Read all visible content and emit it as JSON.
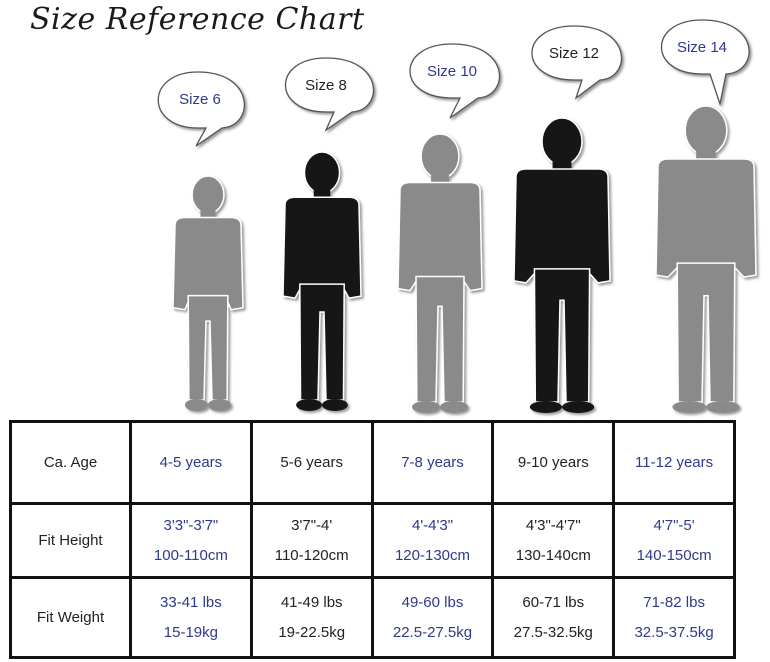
{
  "title": "Size Reference Chart",
  "sizes": [
    {
      "label": "Size 6",
      "figure": "gray"
    },
    {
      "label": "Size 8",
      "figure": "black"
    },
    {
      "label": "Size 10",
      "figure": "gray"
    },
    {
      "label": "Size 12",
      "figure": "black"
    },
    {
      "label": "Size 14",
      "figure": "gray"
    }
  ],
  "colors": {
    "gray_figure": "#8a8a8a",
    "black_figure": "#141414",
    "blue_text": "#2e3a8c",
    "border": "#111111"
  },
  "table": {
    "rows": [
      {
        "label": "Ca. Age",
        "cells": [
          [
            "4-5 years"
          ],
          [
            "5-6 years"
          ],
          [
            "7-8 years"
          ],
          [
            "9-10 years"
          ],
          [
            "11-12 years"
          ]
        ]
      },
      {
        "label": "Fit Height",
        "cells": [
          [
            "3'3\"-3'7\"",
            "100-110cm"
          ],
          [
            "3'7\"-4'",
            "110-120cm"
          ],
          [
            "4'-4'3\"",
            "120-130cm"
          ],
          [
            "4'3\"-4'7\"",
            "130-140cm"
          ],
          [
            "4'7\"-5'",
            "140-150cm"
          ]
        ]
      },
      {
        "label": "Fit Weight",
        "cells": [
          [
            "33-41 lbs",
            "15-19kg"
          ],
          [
            "41-49 lbs",
            "19-22.5kg"
          ],
          [
            "49-60 lbs",
            "22.5-27.5kg"
          ],
          [
            "60-71 lbs",
            "27.5-32.5kg"
          ],
          [
            "71-82 lbs",
            "32.5-37.5kg"
          ]
        ]
      }
    ]
  }
}
